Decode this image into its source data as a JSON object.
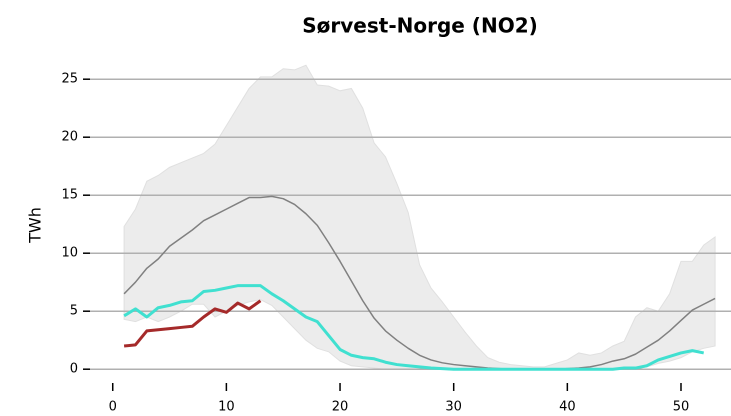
{
  "chart_data": {
    "type": "line",
    "title": "Sørvest-Norge (NO2)",
    "ylabel": "TWh",
    "x": [
      1,
      2,
      3,
      4,
      5,
      6,
      7,
      8,
      9,
      10,
      11,
      12,
      13,
      14,
      15,
      16,
      17,
      18,
      19,
      20,
      21,
      22,
      23,
      24,
      25,
      26,
      27,
      28,
      29,
      30,
      31,
      32,
      33,
      34,
      35,
      36,
      37,
      38,
      39,
      40,
      41,
      42,
      43,
      44,
      45,
      46,
      47,
      48,
      49,
      50,
      51,
      52,
      53
    ],
    "band": {
      "color": "#ececec",
      "upper": [
        12.3,
        13.8,
        16.2,
        16.7,
        17.4,
        17.8,
        18.2,
        18.6,
        19.4,
        21,
        22.6,
        24.2,
        25.2,
        25.2,
        25.9,
        25.8,
        26.2,
        24.5,
        24.4,
        24,
        24.2,
        22.5,
        19.5,
        18.3,
        16,
        13.5,
        9,
        7,
        5.8,
        4.5,
        3.2,
        2,
        1,
        0.6,
        0.4,
        0.3,
        0.2,
        0.2,
        0.5,
        0.8,
        1.4,
        1.2,
        1.4,
        2,
        2.4,
        4.5,
        5.3,
        5,
        6.5,
        9.3,
        9.3,
        10.7,
        11.4
      ],
      "lower": [
        4.3,
        4.1,
        4.5,
        4.1,
        4.5,
        5,
        5.6,
        5.6,
        4.5,
        5,
        5.5,
        5.8,
        6,
        5.5,
        4.5,
        3.5,
        2.5,
        1.8,
        1.5,
        0.7,
        0.3,
        0.2,
        0.1,
        0,
        0,
        0,
        0,
        0,
        0,
        0,
        0,
        0,
        0,
        0,
        0,
        0,
        0,
        0,
        0,
        0,
        0,
        0,
        0,
        0,
        0,
        0.1,
        0.2,
        0.5,
        0.7,
        1,
        1.5,
        1.8,
        2
      ]
    },
    "series": [
      {
        "color": "#808080",
        "width": 1.5,
        "values": [
          6.5,
          7.5,
          8.7,
          9.5,
          10.6,
          11.3,
          12,
          12.8,
          13.3,
          13.8,
          14.3,
          14.8,
          14.8,
          14.9,
          14.7,
          14.2,
          13.4,
          12.4,
          10.9,
          9.3,
          7.6,
          5.9,
          4.4,
          3.3,
          2.5,
          1.8,
          1.2,
          0.8,
          0.55,
          0.4,
          0.3,
          0.2,
          0.1,
          0.05,
          0,
          0,
          0,
          0,
          0,
          0.05,
          0.1,
          0.2,
          0.4,
          0.7,
          0.9,
          1.3,
          1.9,
          2.5,
          3.3,
          4.2,
          5.1,
          5.6,
          6.1
        ]
      },
      {
        "color": "#40e0d0",
        "width": 3,
        "values": [
          4.6,
          5.2,
          4.5,
          5.3,
          5.5,
          5.8,
          5.9,
          6.7,
          6.8,
          7,
          7.2,
          7.2,
          7.2,
          6.5,
          5.9,
          5.2,
          4.5,
          4.1,
          2.9,
          1.7,
          1.2,
          1,
          0.9,
          0.6,
          0.4,
          0.3,
          0.2,
          0.1,
          0.05,
          0,
          0,
          0,
          0,
          0,
          0,
          0,
          0,
          0,
          0,
          0,
          0,
          0,
          0,
          0,
          0.1,
          0.1,
          0.3,
          0.8,
          1.1,
          1.4,
          1.6,
          1.4,
          null
        ]
      },
      {
        "color": "#a52a2a",
        "width": 3,
        "values": [
          2,
          2.1,
          3.3,
          3.4,
          3.5,
          3.6,
          3.7,
          4.5,
          5.2,
          4.9,
          5.7,
          5.2,
          5.9,
          null,
          null,
          null,
          null,
          null,
          null,
          null,
          null,
          null,
          null,
          null,
          null,
          null,
          null,
          null,
          null,
          null,
          null,
          null,
          null,
          null,
          null,
          null,
          null,
          null,
          null,
          null,
          null,
          null,
          null,
          null,
          null,
          null,
          null,
          null,
          null,
          null,
          null,
          null,
          null
        ]
      }
    ],
    "xlim": [
      -2,
      54.4
    ],
    "ylim": [
      -0.5,
      27
    ],
    "xticks": [
      0,
      10,
      20,
      30,
      40,
      50
    ],
    "yticks": [
      0,
      5,
      10,
      15,
      20,
      25
    ],
    "grid": true
  }
}
